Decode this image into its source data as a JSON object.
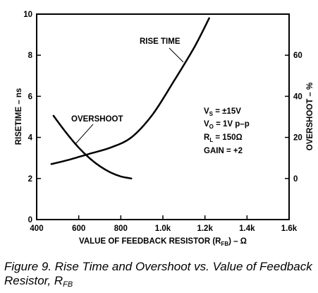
{
  "chart_data": {
    "type": "line",
    "x_axis": {
      "label": "VALUE OF FEEDBACK RESISTOR (R",
      "label_sub": "FB",
      "label_tail": ") – Ω",
      "range": [
        400,
        1600
      ],
      "ticks": [
        400,
        600,
        800,
        1000,
        1200,
        1400,
        1600
      ],
      "tick_labels": [
        "400",
        "600",
        "800",
        "1.0k",
        "1.2k",
        "1.4k",
        "1.6k"
      ]
    },
    "y_left": {
      "label": "RISETIME – ns",
      "range": [
        0,
        10
      ],
      "ticks": [
        0,
        2,
        4,
        6,
        8,
        10
      ],
      "tick_labels": [
        "0",
        "2",
        "4",
        "6",
        "8",
        "10"
      ]
    },
    "y_right": {
      "label": "OVERSHOOT – %",
      "range": [
        -20,
        80
      ],
      "ticks": [
        0,
        20,
        40,
        60
      ],
      "tick_labels": [
        "0",
        "20",
        "40",
        "60"
      ]
    },
    "series": [
      {
        "name": "RISE TIME",
        "axis": "left",
        "x": [
          470,
          550,
          650,
          750,
          850,
          950,
          1050,
          1150,
          1220
        ],
        "y": [
          2.7,
          2.9,
          3.2,
          3.5,
          4.0,
          5.1,
          6.7,
          8.4,
          9.8
        ]
      },
      {
        "name": "OVERSHOOT",
        "axis": "right",
        "x": [
          480,
          550,
          600,
          650,
          700,
          750,
          800,
          850
        ],
        "y": [
          30.5,
          21,
          15,
          10,
          6,
          3,
          1,
          0
        ]
      }
    ],
    "annotations": {
      "rise_time_label": "RISE TIME",
      "overshoot_label": "OVERSHOOT",
      "conditions": [
        {
          "pre": "V",
          "sub": "S",
          "post": " = ±15V"
        },
        {
          "pre": "V",
          "sub": "O",
          "post": " = 1V p–p"
        },
        {
          "pre": "R",
          "sub": "L",
          "post": " = 150Ω"
        },
        {
          "pre": "GAIN = +2",
          "sub": "",
          "post": ""
        }
      ]
    },
    "grid": false
  },
  "caption": {
    "text": "Figure 9.  Rise Time and Overshoot vs. Value of Feedback Resistor, R",
    "sub": "FB"
  }
}
